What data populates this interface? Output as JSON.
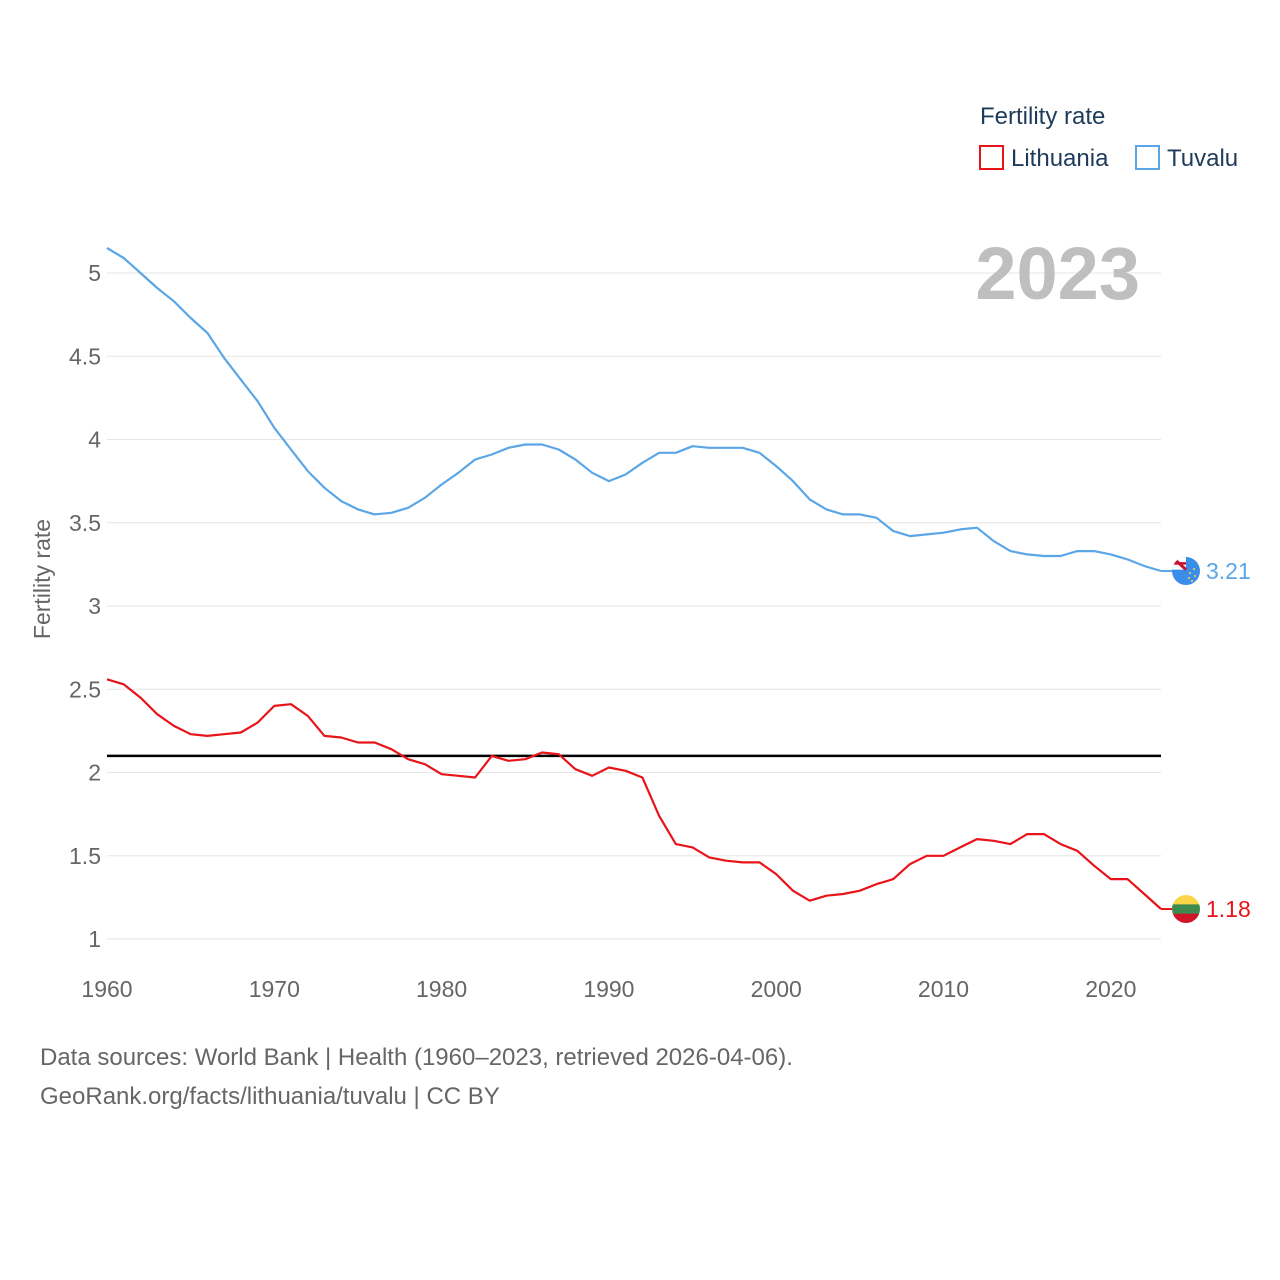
{
  "chart_data": {
    "type": "line",
    "title": "",
    "xlabel": "",
    "ylabel": "Fertility rate",
    "xlim": [
      1960,
      2023
    ],
    "ylim": [
      0.9,
      5.2
    ],
    "y_ticks": [
      1,
      1.5,
      2,
      2.5,
      3,
      3.5,
      4,
      4.5,
      5
    ],
    "y_tick_labels": [
      "1",
      "1.5",
      "2",
      "2.5",
      "3",
      "3.5",
      "4",
      "4.5",
      "5"
    ],
    "x_ticks": [
      1960,
      1970,
      1980,
      1990,
      2000,
      2010,
      2020
    ],
    "x_tick_labels": [
      "1960",
      "1970",
      "1980",
      "1990",
      "2000",
      "2010",
      "2020"
    ],
    "grid": true,
    "legend": {
      "title": "Fertility rate",
      "placement": "top-right"
    },
    "year_label": "2023",
    "reference_line": {
      "value": 2.1,
      "color": "#000000"
    },
    "x": [
      1960,
      1961,
      1962,
      1963,
      1964,
      1965,
      1966,
      1967,
      1968,
      1969,
      1970,
      1971,
      1972,
      1973,
      1974,
      1975,
      1976,
      1977,
      1978,
      1979,
      1980,
      1981,
      1982,
      1983,
      1984,
      1985,
      1986,
      1987,
      1988,
      1989,
      1990,
      1991,
      1992,
      1993,
      1994,
      1995,
      1996,
      1997,
      1998,
      1999,
      2000,
      2001,
      2002,
      2003,
      2004,
      2005,
      2006,
      2007,
      2008,
      2009,
      2010,
      2011,
      2012,
      2013,
      2014,
      2015,
      2016,
      2017,
      2018,
      2019,
      2020,
      2021,
      2022,
      2023
    ],
    "series": [
      {
        "name": "Lithuania",
        "color": "#e8141a",
        "end_label": "1.18",
        "values": [
          2.56,
          2.53,
          2.45,
          2.35,
          2.28,
          2.23,
          2.22,
          2.23,
          2.24,
          2.3,
          2.4,
          2.41,
          2.34,
          2.22,
          2.21,
          2.18,
          2.18,
          2.14,
          2.08,
          2.05,
          1.99,
          1.98,
          1.97,
          2.1,
          2.07,
          2.08,
          2.12,
          2.11,
          2.02,
          1.98,
          2.03,
          2.01,
          1.97,
          1.74,
          1.57,
          1.55,
          1.49,
          1.47,
          1.46,
          1.46,
          1.39,
          1.29,
          1.23,
          1.26,
          1.27,
          1.29,
          1.33,
          1.36,
          1.45,
          1.5,
          1.5,
          1.55,
          1.6,
          1.59,
          1.57,
          1.63,
          1.63,
          1.57,
          1.53,
          1.44,
          1.36,
          1.36,
          1.27,
          1.18
        ]
      },
      {
        "name": "Tuvalu",
        "color": "#5aa6e6",
        "end_label": "3.21",
        "values": [
          5.15,
          5.09,
          5.0,
          4.91,
          4.83,
          4.73,
          4.64,
          4.49,
          4.36,
          4.23,
          4.07,
          3.94,
          3.81,
          3.71,
          3.63,
          3.58,
          3.55,
          3.56,
          3.59,
          3.65,
          3.73,
          3.8,
          3.88,
          3.91,
          3.95,
          3.97,
          3.97,
          3.94,
          3.88,
          3.8,
          3.75,
          3.79,
          3.86,
          3.92,
          3.92,
          3.96,
          3.95,
          3.95,
          3.95,
          3.92,
          3.84,
          3.75,
          3.64,
          3.58,
          3.55,
          3.55,
          3.53,
          3.45,
          3.42,
          3.43,
          3.44,
          3.46,
          3.47,
          3.39,
          3.33,
          3.31,
          3.3,
          3.3,
          3.33,
          3.33,
          3.31,
          3.28,
          3.24,
          3.21
        ]
      }
    ]
  },
  "footer": {
    "line1": "Data sources: World Bank | Health (1960–2023, retrieved 2026-04-06).",
    "line2": "GeoRank.org/facts/lithuania/tuvalu | CC BY"
  },
  "flags": {
    "Lithuania": [
      "#f9d648",
      "#3f8a4e",
      "#d0152a"
    ],
    "Tuvalu": [
      "#3a8ee8",
      "#c8102e",
      "#ffffff"
    ]
  }
}
